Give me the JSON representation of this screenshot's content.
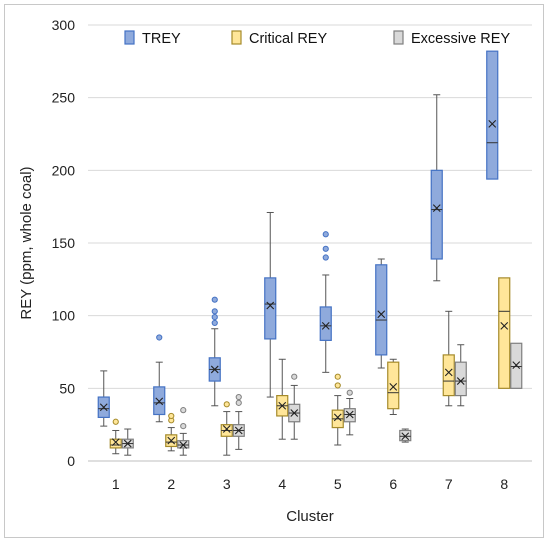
{
  "chart_data": {
    "type": "boxplot",
    "title": "",
    "xlabel": "Cluster",
    "ylabel": "REY (ppm, whole coal)",
    "ylim": [
      0,
      300
    ],
    "yticks": [
      0,
      50,
      100,
      150,
      200,
      250,
      300
    ],
    "grid": "horizontal",
    "legend_position": "top",
    "categories": [
      "1",
      "2",
      "3",
      "4",
      "5",
      "6",
      "7",
      "8"
    ],
    "series": [
      {
        "name": "TREY",
        "color": "#8faadc",
        "stroke": "#4472c4",
        "boxes": [
          {
            "min": 24,
            "q1": 30,
            "median": 36,
            "q3": 44,
            "max": 62,
            "mean": 37,
            "outliers": []
          },
          {
            "min": 27,
            "q1": 32,
            "median": 40,
            "q3": 51,
            "max": 68,
            "mean": 41,
            "outliers": [
              85
            ]
          },
          {
            "min": 38,
            "q1": 55,
            "median": 63,
            "q3": 71,
            "max": 91,
            "mean": 63,
            "outliers": [
              95,
              99,
              103,
              111
            ]
          },
          {
            "min": 44,
            "q1": 84,
            "median": 108,
            "q3": 126,
            "max": 171,
            "mean": 107,
            "outliers": []
          },
          {
            "min": 61,
            "q1": 83,
            "median": 93,
            "q3": 106,
            "max": 128,
            "mean": 93,
            "outliers": [
              140,
              146,
              156
            ]
          },
          {
            "min": 64,
            "q1": 73,
            "median": 97,
            "q3": 135,
            "max": 139,
            "mean": 101,
            "outliers": []
          },
          {
            "min": 124,
            "q1": 139,
            "median": 173,
            "q3": 200,
            "max": 252,
            "mean": 174,
            "outliers": []
          },
          {
            "min": 194,
            "q1": 194,
            "median": 219,
            "q3": 282,
            "max": 282,
            "mean": 232,
            "outliers": []
          }
        ]
      },
      {
        "name": "Critical REY",
        "color": "#ffe699",
        "stroke": "#a58a2a",
        "boxes": [
          {
            "min": 5,
            "q1": 9,
            "median": 11,
            "q3": 15,
            "max": 21,
            "mean": 13,
            "outliers": [
              27
            ]
          },
          {
            "min": 7,
            "q1": 10,
            "median": 13,
            "q3": 18,
            "max": 23,
            "mean": 14,
            "outliers": [
              28,
              31
            ]
          },
          {
            "min": 4,
            "q1": 17,
            "median": 21,
            "q3": 25,
            "max": 34,
            "mean": 22,
            "outliers": [
              39
            ]
          },
          {
            "min": 15,
            "q1": 31,
            "median": 38,
            "q3": 45,
            "max": 70,
            "mean": 38,
            "outliers": []
          },
          {
            "min": 11,
            "q1": 23,
            "median": 29,
            "q3": 35,
            "max": 45,
            "mean": 30,
            "outliers": [
              52,
              58
            ]
          },
          {
            "min": 32,
            "q1": 36,
            "median": 47,
            "q3": 68,
            "max": 70,
            "mean": 51,
            "outliers": []
          },
          {
            "min": 38,
            "q1": 45,
            "median": 55,
            "q3": 73,
            "max": 103,
            "mean": 61,
            "outliers": []
          },
          {
            "min": 50,
            "q1": 50,
            "median": 103,
            "q3": 126,
            "max": 126,
            "mean": 93,
            "outliers": []
          }
        ]
      },
      {
        "name": "Excessive REY",
        "color": "#d9d9d9",
        "stroke": "#7f7f7f",
        "boxes": [
          {
            "min": 4,
            "q1": 9,
            "median": 12,
            "q3": 15,
            "max": 22,
            "mean": 12,
            "outliers": []
          },
          {
            "min": 4,
            "q1": 9,
            "median": 11,
            "q3": 14,
            "max": 19,
            "mean": 11,
            "outliers": [
              24,
              35
            ]
          },
          {
            "min": 8,
            "q1": 17,
            "median": 21,
            "q3": 25,
            "max": 34,
            "mean": 21,
            "outliers": [
              40,
              44
            ]
          },
          {
            "min": 15,
            "q1": 27,
            "median": 33,
            "q3": 39,
            "max": 52,
            "mean": 33,
            "outliers": [
              58
            ]
          },
          {
            "min": 18,
            "q1": 27,
            "median": 32,
            "q3": 36,
            "max": 43,
            "mean": 32,
            "outliers": [
              47
            ]
          },
          {
            "min": 13,
            "q1": 14,
            "median": 17,
            "q3": 21,
            "max": 22,
            "mean": 17,
            "outliers": []
          },
          {
            "min": 38,
            "q1": 45,
            "median": 55,
            "q3": 68,
            "max": 80,
            "mean": 55,
            "outliers": []
          },
          {
            "min": 50,
            "q1": 50,
            "median": 65,
            "q3": 81,
            "max": 81,
            "mean": 66,
            "outliers": []
          }
        ]
      }
    ]
  }
}
